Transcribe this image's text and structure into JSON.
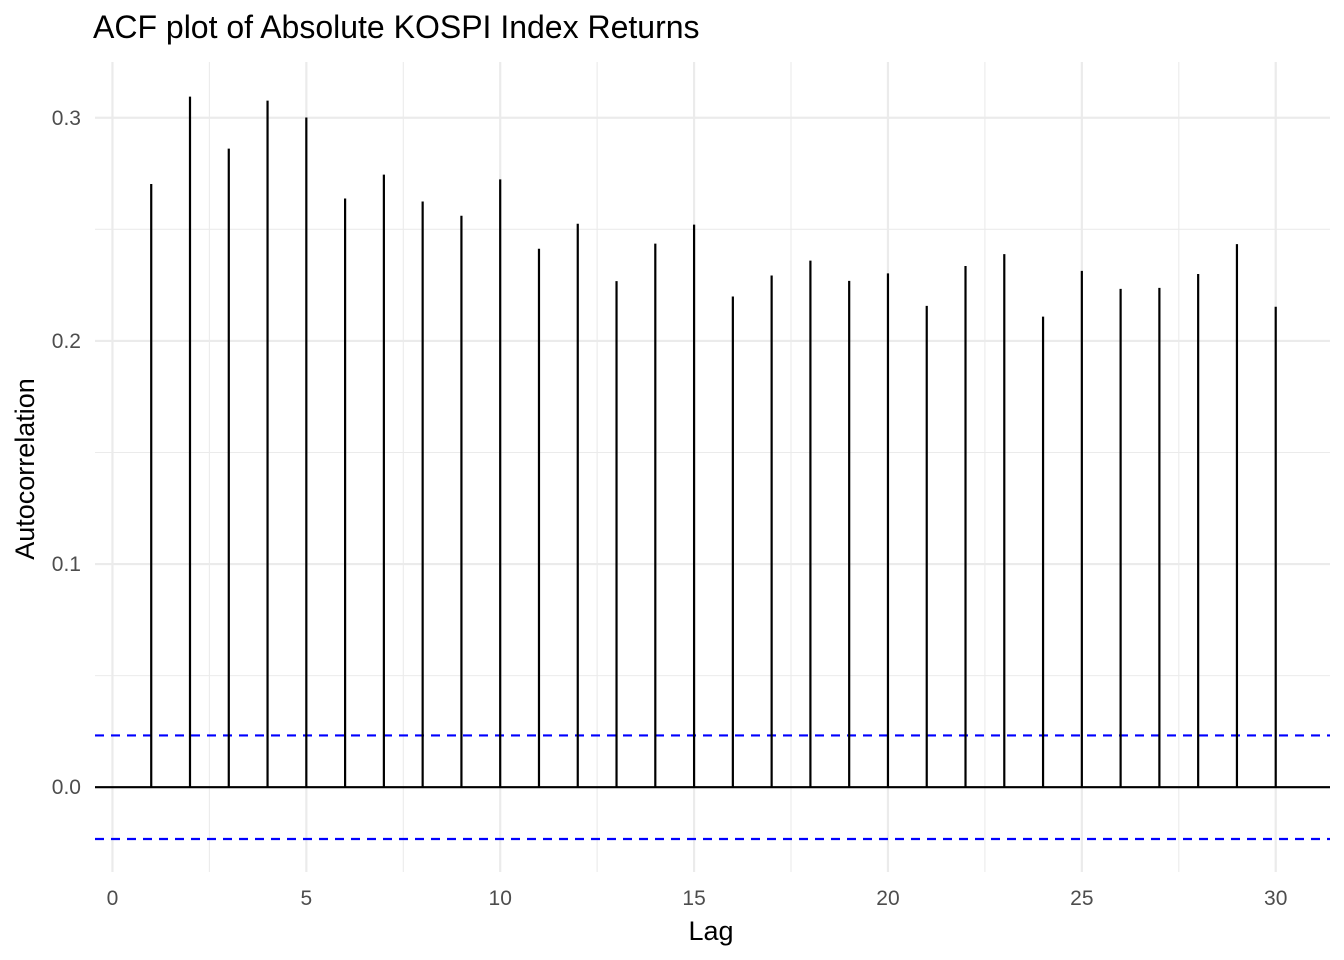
{
  "chart_data": {
    "type": "bar",
    "title": "ACF plot of Absolute KOSPI Index Returns",
    "xlabel": "Lag",
    "ylabel": "Autocorrelation",
    "x": [
      1,
      2,
      3,
      4,
      5,
      6,
      7,
      8,
      9,
      10,
      11,
      12,
      13,
      14,
      15,
      16,
      17,
      18,
      19,
      20,
      21,
      22,
      23,
      24,
      25,
      26,
      27,
      28,
      29,
      30
    ],
    "values": [
      0.2703,
      0.3095,
      0.2862,
      0.3077,
      0.3001,
      0.2638,
      0.2745,
      0.2625,
      0.2561,
      0.2724,
      0.2413,
      0.2525,
      0.2268,
      0.2436,
      0.2521,
      0.2199,
      0.2293,
      0.236,
      0.2269,
      0.2303,
      0.2157,
      0.2336,
      0.2389,
      0.2109,
      0.2314,
      0.2233,
      0.2238,
      0.23,
      0.2434,
      0.2153
    ],
    "xlim": [
      -0.45,
      31.4
    ],
    "ylim": [
      -0.038,
      0.325
    ],
    "x_ticks": [
      0,
      5,
      10,
      15,
      20,
      25,
      30
    ],
    "x_tick_labels": [
      "0",
      "5",
      "10",
      "15",
      "20",
      "25",
      "30"
    ],
    "y_ticks": [
      0.0,
      0.1,
      0.2,
      0.3
    ],
    "y_tick_labels": [
      "0.0",
      "0.1",
      "0.2",
      "0.3"
    ],
    "y_minor_ticks": [
      0.05,
      0.15,
      0.25
    ],
    "confidence_bounds": [
      0.0232,
      -0.0232
    ],
    "grid": true,
    "colors": {
      "bars": "#000000",
      "confidence_lines": "#0000ff",
      "grid": "#ebebeb",
      "zero_line": "#000000",
      "tick_text": "#4d4d4d"
    }
  }
}
